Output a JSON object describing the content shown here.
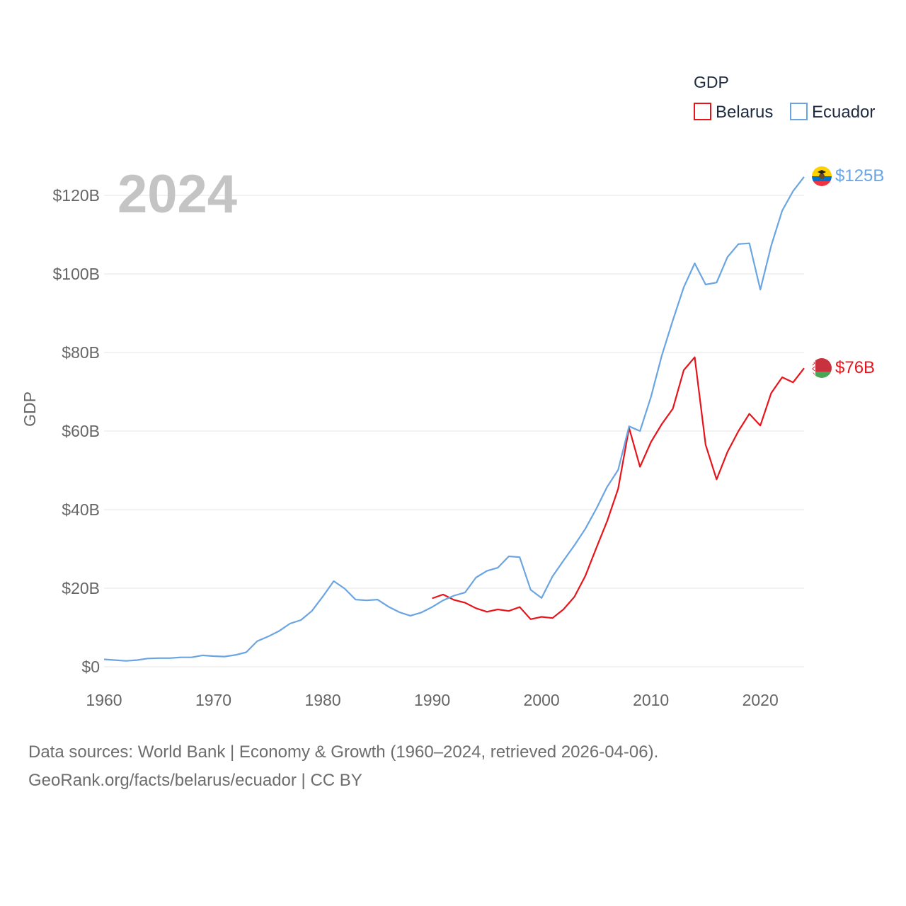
{
  "chart_data": {
    "type": "line",
    "title": "GDP",
    "current_year_label": "2024",
    "ylabel": "GDP",
    "xlabel": "",
    "xlim": [
      1960,
      2024
    ],
    "ylim": [
      0,
      130
    ],
    "unit": "billion USD",
    "x_ticks": [
      1960,
      1970,
      1980,
      1990,
      2000,
      2010,
      2020
    ],
    "x_tick_labels": [
      "1960",
      "1970",
      "1980",
      "1990",
      "2000",
      "2010",
      "2020"
    ],
    "y_ticks": [
      0,
      20,
      40,
      60,
      80,
      100,
      120
    ],
    "y_tick_labels": [
      "$0",
      "$20B",
      "$40B",
      "$60B",
      "$80B",
      "$100B",
      "$120B"
    ],
    "grid": true,
    "legend_position": "top-right",
    "series": [
      {
        "name": "Belarus",
        "color": "#e8141b",
        "end_label": "$76B",
        "flag": "belarus-flag-icon",
        "x": [
          1990,
          1991,
          1992,
          1993,
          1994,
          1995,
          1996,
          1997,
          1998,
          1999,
          2000,
          2001,
          2002,
          2003,
          2004,
          2005,
          2006,
          2007,
          2008,
          2009,
          2010,
          2011,
          2012,
          2013,
          2014,
          2015,
          2016,
          2017,
          2018,
          2019,
          2020,
          2021,
          2022,
          2023,
          2024
        ],
        "values": [
          17.4,
          18.4,
          17.0,
          16.3,
          14.9,
          14.0,
          14.6,
          14.2,
          15.2,
          12.1,
          12.7,
          12.4,
          14.6,
          17.8,
          23.1,
          30.2,
          37.1,
          45.3,
          60.8,
          50.9,
          57.2,
          61.8,
          65.7,
          75.5,
          78.8,
          56.5,
          47.7,
          54.7,
          60.0,
          64.4,
          61.4,
          69.7,
          73.7,
          72.4,
          76.0
        ]
      },
      {
        "name": "Ecuador",
        "color": "#6aa5e2",
        "end_label": "$125B",
        "flag": "ecuador-flag-icon",
        "x": [
          1960,
          1961,
          1962,
          1963,
          1964,
          1965,
          1966,
          1967,
          1968,
          1969,
          1970,
          1971,
          1972,
          1973,
          1974,
          1975,
          1976,
          1977,
          1978,
          1979,
          1980,
          1981,
          1982,
          1983,
          1984,
          1985,
          1986,
          1987,
          1988,
          1989,
          1990,
          1991,
          1992,
          1993,
          1994,
          1995,
          1996,
          1997,
          1998,
          1999,
          2000,
          2001,
          2002,
          2003,
          2004,
          2005,
          2006,
          2007,
          2008,
          2009,
          2010,
          2011,
          2012,
          2013,
          2014,
          2015,
          2016,
          2017,
          2018,
          2019,
          2020,
          2021,
          2022,
          2023,
          2024
        ],
        "values": [
          1.9,
          1.7,
          1.5,
          1.7,
          2.1,
          2.2,
          2.2,
          2.4,
          2.4,
          2.9,
          2.7,
          2.6,
          3.0,
          3.7,
          6.5,
          7.7,
          9.1,
          11.0,
          11.9,
          14.2,
          17.9,
          21.8,
          19.9,
          17.1,
          16.9,
          17.1,
          15.3,
          13.9,
          13.0,
          13.8,
          15.2,
          16.9,
          18.1,
          18.9,
          22.7,
          24.4,
          25.2,
          28.1,
          27.9,
          19.6,
          17.5,
          23.0,
          27.0,
          30.9,
          35.1,
          40.2,
          45.8,
          50.1,
          61.2,
          60.0,
          68.7,
          79.3,
          88.2,
          96.6,
          102.7,
          97.3,
          97.8,
          104.3,
          107.6,
          107.8,
          96.0,
          107.2,
          116.1,
          121.1,
          124.7
        ]
      }
    ]
  },
  "footer": {
    "line1": "Data sources: World Bank | Economy & Growth (1960–2024, retrieved 2026-04-06).",
    "line2": "GeoRank.org/facts/belarus/ecuador | CC BY"
  }
}
